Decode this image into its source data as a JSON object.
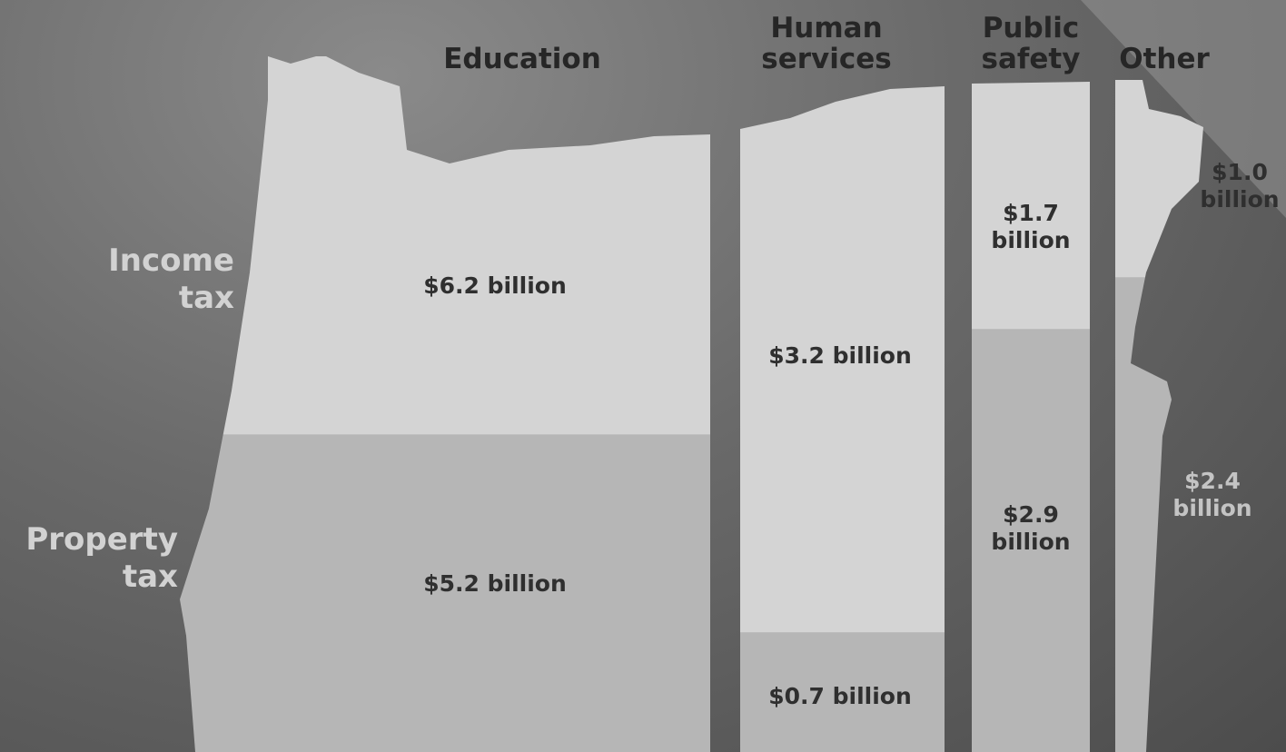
{
  "chart_data": {
    "type": "bar",
    "stacked": true,
    "categories": [
      "Education",
      "Human services",
      "Public safety",
      "Other"
    ],
    "series": [
      {
        "name": "Income tax",
        "color": "#d4d4d4",
        "values": [
          6.2,
          3.2,
          1.7,
          1.0
        ],
        "value_labels": [
          "$6.2 billion",
          "$3.2 billion",
          "$1.7 billion",
          "$1.0 billion"
        ]
      },
      {
        "name": "Property tax",
        "color": "#b6b6b6",
        "values": [
          5.2,
          0.7,
          2.9,
          2.4
        ],
        "value_labels": [
          "$5.2 billion",
          "$0.7 billion",
          "$2.9 billion",
          "$2.4 billion"
        ]
      }
    ]
  }
}
